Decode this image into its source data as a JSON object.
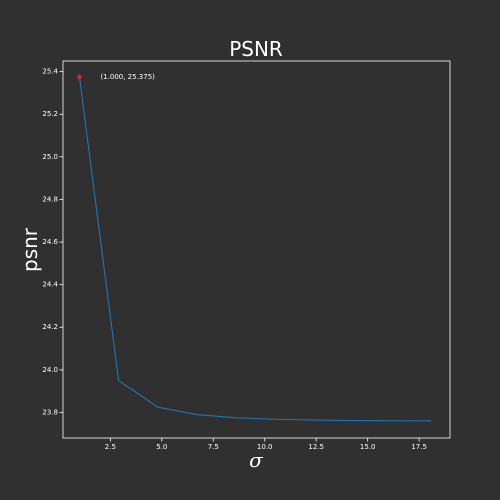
{
  "chart_data": {
    "type": "line",
    "title": "PSNR",
    "xlabel": "σ",
    "ylabel": "psnr",
    "xlim": [
      0.2,
      19.0
    ],
    "ylim": [
      23.68,
      25.45
    ],
    "grid": false,
    "xticks": [
      2.5,
      5.0,
      7.5,
      10.0,
      12.5,
      15.0,
      17.5
    ],
    "xtick_labels": [
      "2.5",
      "5.0",
      "7.5",
      "10.0",
      "12.5",
      "15.0",
      "17.5"
    ],
    "yticks": [
      23.8,
      24.0,
      24.2,
      24.4,
      24.6,
      24.8,
      25.0,
      25.2,
      25.4
    ],
    "ytick_labels": [
      "23.8",
      "24.0",
      "24.2",
      "24.4",
      "24.6",
      "24.8",
      "25.0",
      "25.2",
      "25.4"
    ],
    "series": [
      {
        "x": [
          1.0,
          2.9,
          4.8,
          6.7,
          8.6,
          10.5,
          12.4,
          14.3,
          16.2,
          18.1
        ],
        "y": [
          25.375,
          23.95,
          23.825,
          23.79,
          23.775,
          23.768,
          23.764,
          23.762,
          23.761,
          23.76
        ],
        "color": "#1f77b4"
      }
    ],
    "annotation": {
      "x": 1.0,
      "y": 25.375,
      "text": "(1.000, 25.375)",
      "marker_color": "#d62728"
    },
    "colors": {
      "background": "#303030",
      "axes": "#ffffff",
      "text": "#ffffff"
    }
  }
}
